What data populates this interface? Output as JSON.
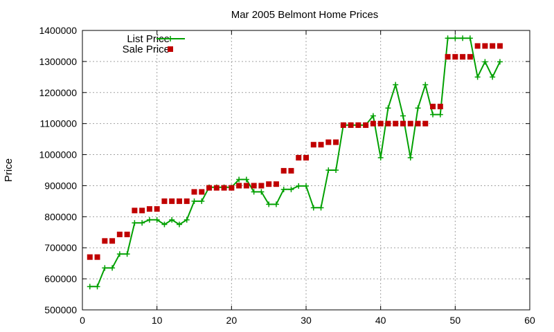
{
  "chart_data": {
    "type": "line",
    "title": "Mar 2005 Belmont Home Prices",
    "xlabel": "",
    "ylabel": "Price",
    "xlim": [
      0,
      60
    ],
    "ylim": [
      500000,
      1400000
    ],
    "xticks": [
      "0",
      "10",
      "20",
      "30",
      "40",
      "50",
      "60"
    ],
    "yticks": [
      "500000",
      "600000",
      "700000",
      "800000",
      "900000",
      "1000000",
      "1100000",
      "1200000",
      "1300000",
      "1400000"
    ],
    "grid": true,
    "legend_position": "top-left",
    "x": [
      1,
      2,
      3,
      4,
      5,
      6,
      7,
      8,
      9,
      10,
      11,
      12,
      13,
      14,
      15,
      16,
      17,
      18,
      19,
      20,
      21,
      22,
      23,
      24,
      25,
      26,
      27,
      28,
      29,
      30,
      31,
      32,
      33,
      34,
      35,
      36,
      37,
      38,
      39,
      40,
      41,
      42,
      43,
      44,
      45,
      46,
      47,
      48,
      49,
      50,
      51,
      52,
      53,
      54,
      55,
      56
    ],
    "series": [
      {
        "name": "List Price",
        "style": "line-with-plus-markers",
        "color": "#00a000",
        "values": [
          575000,
          575000,
          635000,
          635000,
          680000,
          680000,
          780000,
          780000,
          790000,
          790000,
          775000,
          790000,
          775000,
          790000,
          850000,
          850000,
          895000,
          895000,
          895000,
          895000,
          920000,
          920000,
          880000,
          880000,
          840000,
          840000,
          888000,
          888000,
          899000,
          899000,
          829000,
          829000,
          950000,
          950000,
          1095000,
          1095000,
          1095000,
          1095000,
          1125000,
          990000,
          1150000,
          1225000,
          1125000,
          990000,
          1150000,
          1225000,
          1129000,
          1129000,
          1375000,
          1375000,
          1375000,
          1375000,
          1250000,
          1299000,
          1250000,
          1299000
        ]
      },
      {
        "name": "Sale Price",
        "style": "square-markers",
        "color": "#c00000",
        "values": [
          670000,
          670000,
          722000,
          722000,
          743000,
          743000,
          820000,
          820000,
          825000,
          825000,
          850000,
          850000,
          850000,
          850000,
          880000,
          880000,
          893000,
          893000,
          893000,
          893000,
          900000,
          900000,
          900000,
          900000,
          905000,
          905000,
          948000,
          948000,
          990000,
          990000,
          1032000,
          1032000,
          1040000,
          1040000,
          1095000,
          1095000,
          1095000,
          1095000,
          1100000,
          1100000,
          1100000,
          1100000,
          1100000,
          1100000,
          1100000,
          1100000,
          1155000,
          1155000,
          1315000,
          1315000,
          1315000,
          1315000,
          1350000,
          1350000,
          1350000,
          1350000
        ]
      }
    ]
  }
}
